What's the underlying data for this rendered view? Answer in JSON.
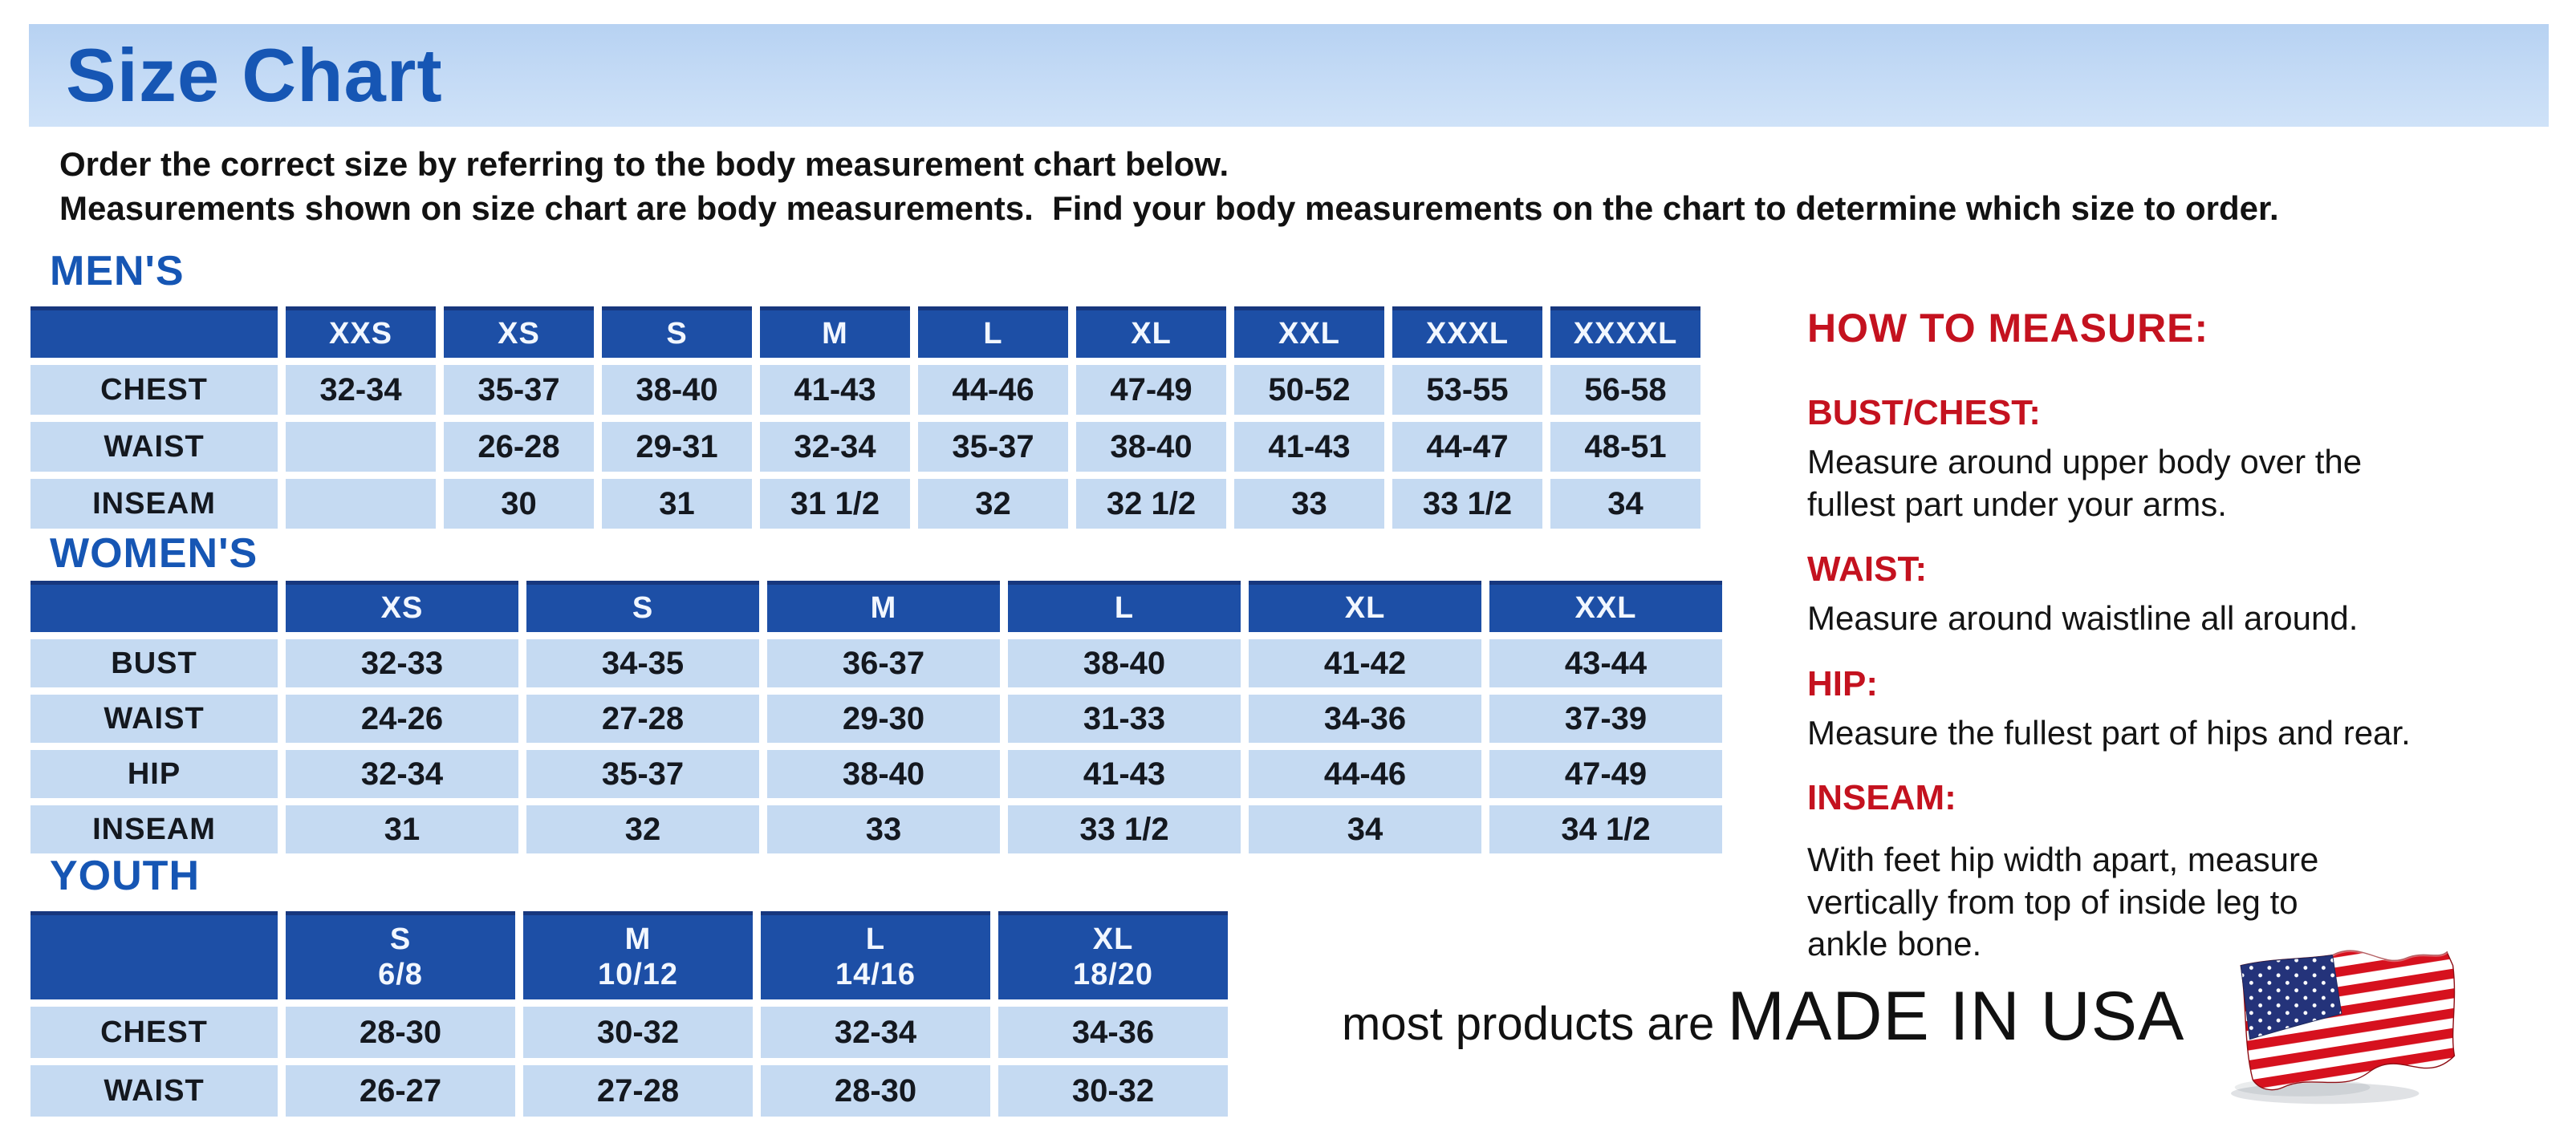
{
  "title": "Size Chart",
  "intro": {
    "line1": "Order the correct size by referring to the body measurement chart below.",
    "line2": "Measurements shown on size chart are body measurements.  Find your body measurements on the chart to determine which size to order."
  },
  "colors": {
    "banner_bg": "#c3daf4",
    "heading_blue": "#1656b4",
    "table_header_blue": "#1d4fa6",
    "table_cell_blue": "#c5daf2",
    "accent_red": "#c4121f",
    "flag_red": "#d6111e",
    "flag_blue": "#24337a"
  },
  "tables": {
    "mens": {
      "section_label": "MEN'S",
      "columns": [
        "XXS",
        "XS",
        "S",
        "M",
        "L",
        "XL",
        "XXL",
        "XXXL",
        "XXXXL"
      ],
      "rows": [
        {
          "label": "CHEST",
          "values": [
            "32-34",
            "35-37",
            "38-40",
            "41-43",
            "44-46",
            "47-49",
            "50-52",
            "53-55",
            "56-58"
          ]
        },
        {
          "label": "WAIST",
          "values": [
            "",
            "26-28",
            "29-31",
            "32-34",
            "35-37",
            "38-40",
            "41-43",
            "44-47",
            "48-51"
          ]
        },
        {
          "label": "INSEAM",
          "values": [
            "",
            "30",
            "31",
            "31 1/2",
            "32",
            "32 1/2",
            "33",
            "33 1/2",
            "34"
          ]
        }
      ]
    },
    "womens": {
      "section_label": "WOMEN'S",
      "columns": [
        "XS",
        "S",
        "M",
        "L",
        "XL",
        "XXL"
      ],
      "rows": [
        {
          "label": "BUST",
          "values": [
            "32-33",
            "34-35",
            "36-37",
            "38-40",
            "41-42",
            "43-44"
          ]
        },
        {
          "label": "WAIST",
          "values": [
            "24-26",
            "27-28",
            "29-30",
            "31-33",
            "34-36",
            "37-39"
          ]
        },
        {
          "label": "HIP",
          "values": [
            "32-34",
            "35-37",
            "38-40",
            "41-43",
            "44-46",
            "47-49"
          ]
        },
        {
          "label": "INSEAM",
          "values": [
            "31",
            "32",
            "33",
            "33 1/2",
            "34",
            "34 1/2"
          ]
        }
      ]
    },
    "youth": {
      "section_label": "YOUTH",
      "columns": [
        {
          "size": "S",
          "grade": "6/8"
        },
        {
          "size": "M",
          "grade": "10/12"
        },
        {
          "size": "L",
          "grade": "14/16"
        },
        {
          "size": "XL",
          "grade": "18/20"
        }
      ],
      "rows": [
        {
          "label": "CHEST",
          "values": [
            "28-30",
            "30-32",
            "32-34",
            "34-36"
          ]
        },
        {
          "label": "WAIST",
          "values": [
            "26-27",
            "27-28",
            "28-30",
            "30-32"
          ]
        }
      ]
    }
  },
  "measure": {
    "heading": "HOW TO MEASURE:",
    "items": [
      {
        "label": "BUST/CHEST:",
        "text": "Measure around upper body over the\nfullest part under your arms."
      },
      {
        "label": "WAIST:",
        "text": "Measure around waistline all around."
      },
      {
        "label": "HIP:",
        "text": "Measure the fullest part of hips and rear."
      },
      {
        "label": "INSEAM:",
        "text": "With feet hip width apart, measure\nvertically from top of inside leg to\nankle bone."
      }
    ]
  },
  "footer": {
    "prefix": "most products are ",
    "emphasis": "MADE IN USA",
    "flag_icon": "us-flag-icon"
  }
}
